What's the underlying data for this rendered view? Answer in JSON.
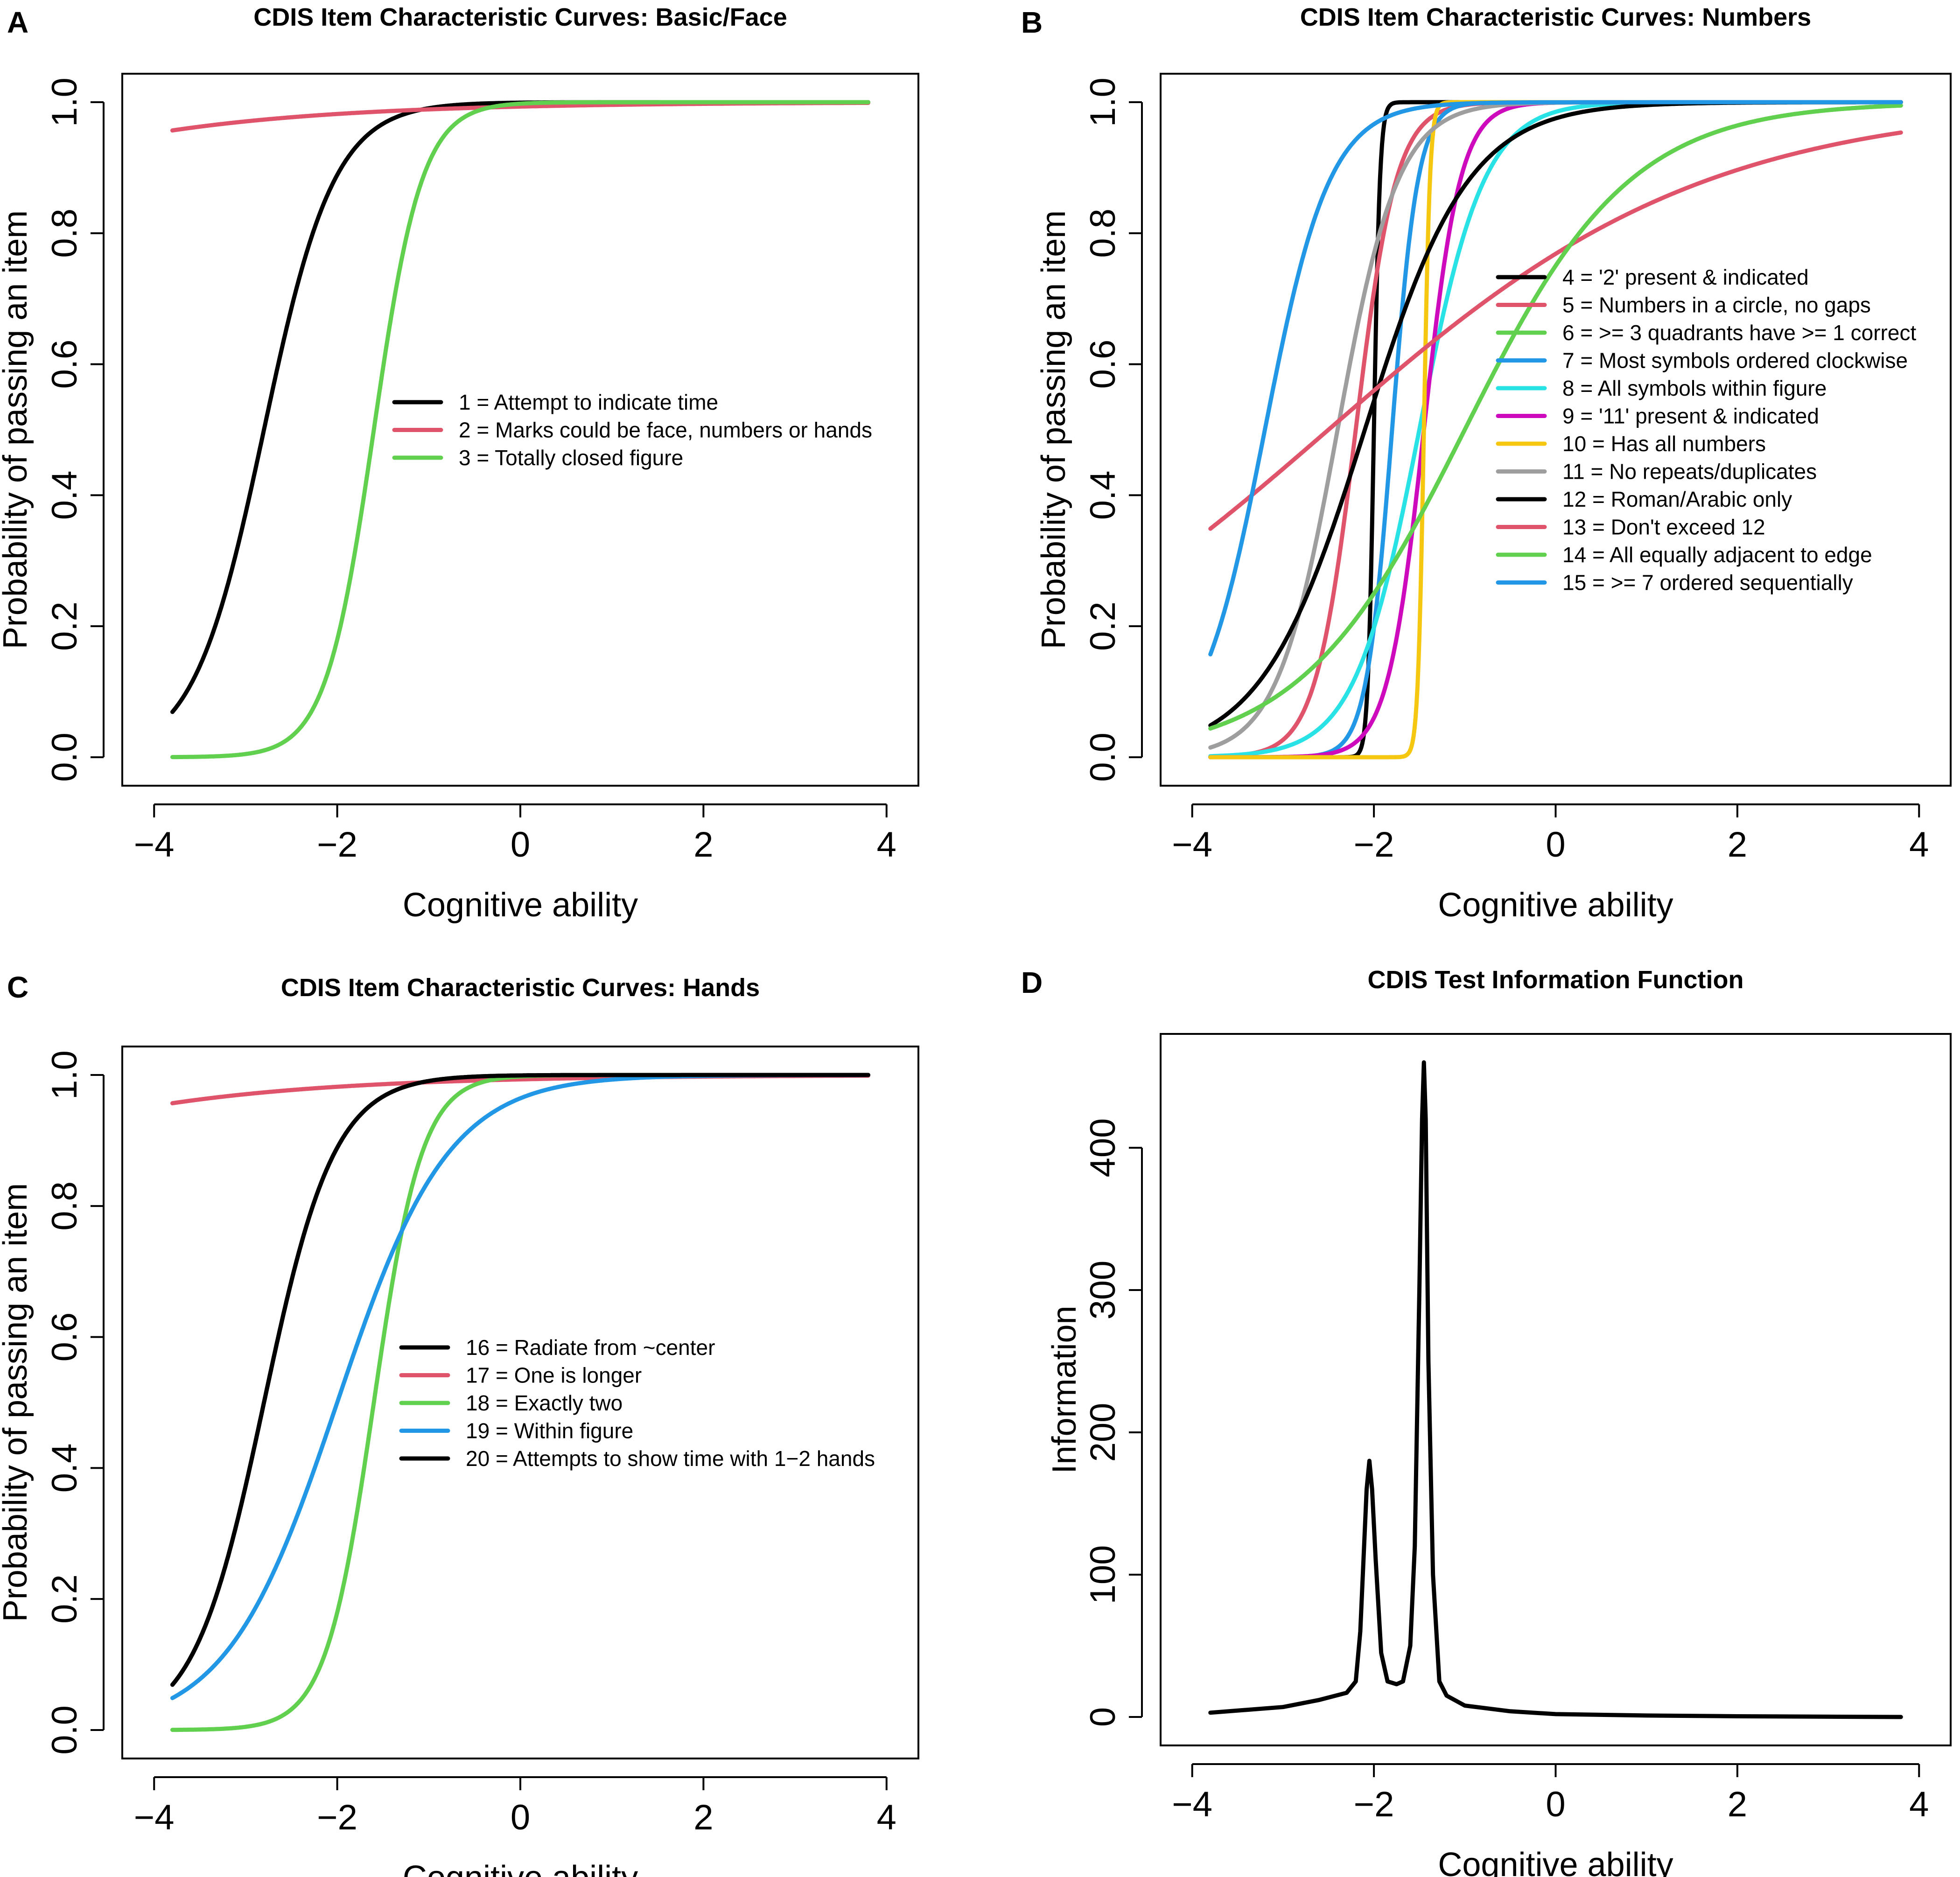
{
  "colors": {
    "black": "#000000",
    "red": "#df536b",
    "green": "#61d04f",
    "blue": "#2297e6",
    "cyan": "#28e2e5",
    "magenta": "#cd0bbc",
    "yellow": "#f5c710",
    "gray": "#9e9e9e"
  },
  "chart_data": [
    {
      "type": "line",
      "panel": "A",
      "title": "CDIS Item Characteristic Curves: Basic/Face",
      "xlabel": "Cognitive ability",
      "ylabel": "Probability of passing an item",
      "xlim": [
        -4,
        4
      ],
      "ylim": [
        0,
        1
      ],
      "xticks": [
        "−4",
        "−2",
        "0",
        "2",
        "4"
      ],
      "yticks": [
        "0.0",
        "0.2",
        "0.4",
        "0.6",
        "0.8",
        "1.0"
      ],
      "legend": "center-right",
      "series": [
        {
          "name": "1 = Attempt to indicate time",
          "color": "#000000",
          "a": 2.6,
          "b": -2.8
        },
        {
          "name": "2 = Marks could be face, numbers or hands",
          "color": "#df536b",
          "a": 0.5,
          "b": -10
        },
        {
          "name": "3 = Totally closed figure",
          "color": "#61d04f",
          "a": 3.8,
          "b": -1.6
        }
      ]
    },
    {
      "type": "line",
      "panel": "B",
      "title": "CDIS Item Characteristic Curves: Numbers",
      "xlabel": "Cognitive ability",
      "ylabel": "Probability of passing an item",
      "xlim": [
        -4,
        4
      ],
      "ylim": [
        0,
        1
      ],
      "xticks": [
        "−4",
        "−2",
        "0",
        "2",
        "4"
      ],
      "yticks": [
        "0.0",
        "0.2",
        "0.4",
        "0.6",
        "0.8",
        "1.0"
      ],
      "legend": "center-right",
      "series": [
        {
          "name": "4 = '2' present & indicated",
          "color": "#000000",
          "a": 30,
          "b": -2.0
        },
        {
          "name": "5 = Numbers in a circle, no gaps",
          "color": "#df536b",
          "a": 4.5,
          "b": -2.2
        },
        {
          "name": "6 = >= 3 quadrants have >= 1 correct",
          "color": "#61d04f",
          "a": 1.1,
          "b": -1.0
        },
        {
          "name": "7 = Most symbols ordered clockwise",
          "color": "#2297e6",
          "a": 7.0,
          "b": -1.8
        },
        {
          "name": "8 = All symbols within figure",
          "color": "#28e2e5",
          "a": 2.8,
          "b": -1.5
        },
        {
          "name": "9 = '11' present & indicated",
          "color": "#cd0bbc",
          "a": 5.0,
          "b": -1.45
        },
        {
          "name": "10 = Has all numbers",
          "color": "#f5c710",
          "a": 30,
          "b": -1.45
        },
        {
          "name": "11 = No repeats/duplicates",
          "color": "#9e9e9e",
          "a": 3.0,
          "b": -2.4
        },
        {
          "name": "12 = Roman/Arabic only",
          "color": "#000000",
          "a": 1.75,
          "b": -2.1
        },
        {
          "name": "13 = Don't exceed 12",
          "color": "#df536b",
          "a": 0.48,
          "b": -2.5
        },
        {
          "name": "14 = All equally adjacent to edge",
          "color": "#61d04f",
          "a": 1.1,
          "b": -1.0
        },
        {
          "name": "15 = >= 7 ordered sequentially",
          "color": "#2297e6",
          "a": 2.8,
          "b": -3.2
        }
      ]
    },
    {
      "type": "line",
      "panel": "C",
      "title": "CDIS Item Characteristic Curves: Hands",
      "xlabel": "Cognitive ability",
      "ylabel": "Probability of passing an item",
      "xlim": [
        -4,
        4
      ],
      "ylim": [
        0,
        1
      ],
      "xticks": [
        "−4",
        "−2",
        "0",
        "2",
        "4"
      ],
      "yticks": [
        "0.0",
        "0.2",
        "0.4",
        "0.6",
        "0.8",
        "1.0"
      ],
      "legend": "center-right",
      "series": [
        {
          "name": "16 = Radiate from ~center",
          "color": "#000000",
          "a": 2.6,
          "b": -2.8
        },
        {
          "name": "17 = One is longer",
          "color": "#df536b",
          "a": 0.5,
          "b": -10
        },
        {
          "name": "18 = Exactly two",
          "color": "#61d04f",
          "a": 3.8,
          "b": -1.6
        },
        {
          "name": "19 = Within figure",
          "color": "#2297e6",
          "a": 1.65,
          "b": -2.0
        },
        {
          "name": "20 = Attempts to show time with 1−2 hands",
          "color": "#000000",
          "a": 2.6,
          "b": -2.8
        }
      ]
    },
    {
      "type": "line",
      "panel": "D",
      "title": "CDIS Test Information Function",
      "xlabel": "Cognitive ability",
      "ylabel": "Information",
      "xlim": [
        -4,
        4
      ],
      "ylim": [
        0,
        460
      ],
      "xticks": [
        "−4",
        "−2",
        "0",
        "2",
        "4"
      ],
      "yticks": [
        "0",
        "100",
        "200",
        "300",
        "400"
      ],
      "series": [
        {
          "name": "Test information",
          "color": "#000000",
          "x": [
            -3.8,
            -3.0,
            -2.6,
            -2.3,
            -2.2,
            -2.15,
            -2.08,
            -2.05,
            -2.02,
            -1.98,
            -1.92,
            -1.85,
            -1.75,
            -1.68,
            -1.6,
            -1.55,
            -1.5,
            -1.47,
            -1.45,
            -1.43,
            -1.4,
            -1.35,
            -1.28,
            -1.2,
            -1.0,
            -0.5,
            0.0,
            1.0,
            2.0,
            3.0,
            3.8
          ],
          "y": [
            3,
            7,
            12,
            17,
            25,
            60,
            160,
            180,
            160,
            110,
            45,
            25,
            23,
            25,
            50,
            120,
            300,
            420,
            460,
            420,
            250,
            100,
            25,
            15,
            8,
            4,
            2,
            1,
            0.5,
            0.2,
            0
          ]
        }
      ]
    }
  ]
}
